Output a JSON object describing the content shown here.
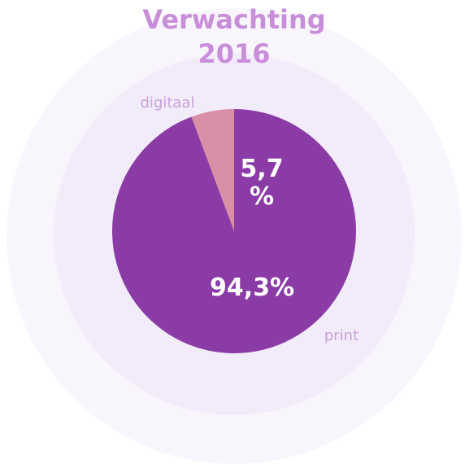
{
  "chart_data": {
    "type": "pie",
    "title": "Verwachting 2016",
    "categories": [
      "digitaal",
      "print"
    ],
    "values": [
      5.7,
      94.3
    ],
    "value_labels": [
      "5,7 %",
      "94,3%"
    ],
    "colors": [
      "#d98fa6",
      "#8b3ba6"
    ]
  }
}
